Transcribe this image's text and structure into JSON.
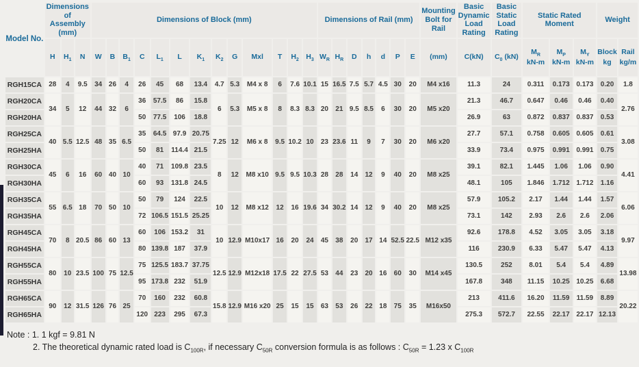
{
  "page": {
    "accent_blue": "#1a6b9a",
    "stripe_dark": "#e2e1dd",
    "stripe_light": "#f5f4f0",
    "page_bg": "#f0efec",
    "edge_bar_color": "#1c1c30"
  },
  "table": {
    "model_col_width": 56,
    "header_groups": [
      {
        "label": "Model No.",
        "name": "model-no-header",
        "rowspan": 2
      },
      {
        "label": "Dimensions of Assembly (mm)",
        "name": "group-dimensions-assembly",
        "colspan": 3
      },
      {
        "label": "Dimensions of Block (mm)",
        "name": "group-dimensions-block",
        "colspan": 13
      },
      {
        "label": "Dimensions of Rail (mm)",
        "name": "group-dimensions-rail",
        "colspan": 7
      },
      {
        "label": "Mounting Bolt for Rail",
        "name": "group-mounting-bolt",
        "colspan": 1
      },
      {
        "label": "Basic Dynamic Load Rating",
        "name": "group-dynamic-load",
        "colspan": 1
      },
      {
        "label": "Basic Static Load Rating",
        "name": "group-static-load",
        "colspan": 1
      },
      {
        "label": "Static Rated Moment",
        "name": "group-static-moment",
        "colspan": 3
      },
      {
        "label": "Weight",
        "name": "group-weight",
        "colspan": 2
      }
    ],
    "columns": [
      {
        "key": "H",
        "t": "H",
        "w": 22
      },
      {
        "key": "H1",
        "t": "H",
        "s": "1",
        "w": 18
      },
      {
        "key": "N",
        "t": "N",
        "w": 22
      },
      {
        "key": "W",
        "t": "W",
        "w": 20
      },
      {
        "key": "B",
        "t": "B",
        "w": 18
      },
      {
        "key": "B1",
        "t": "B",
        "s": "1",
        "w": 19
      },
      {
        "key": "C",
        "t": "C",
        "w": 22
      },
      {
        "key": "L1",
        "t": "L",
        "s": "1",
        "w": 26
      },
      {
        "key": "L",
        "t": "L",
        "w": 28
      },
      {
        "key": "K1",
        "t": "K",
        "s": "1",
        "w": 30
      },
      {
        "key": "K2",
        "t": "K",
        "s": "2",
        "w": 21
      },
      {
        "key": "G",
        "t": "G",
        "w": 20
      },
      {
        "key": "Mxl",
        "t": "Mxl",
        "w": 42
      },
      {
        "key": "T",
        "t": "T",
        "w": 20
      },
      {
        "key": "H2",
        "t": "H",
        "s": "2",
        "w": 20
      },
      {
        "key": "H3",
        "t": "H",
        "s": "3",
        "w": 20
      },
      {
        "key": "WR",
        "t": "W",
        "s": "R",
        "w": 19
      },
      {
        "key": "HR",
        "t": "H",
        "s": "R",
        "w": 20
      },
      {
        "key": "D",
        "t": "D",
        "w": 20
      },
      {
        "key": "h",
        "t": "h",
        "w": 19
      },
      {
        "key": "d",
        "t": "d",
        "w": 19
      },
      {
        "key": "P",
        "t": "P",
        "w": 20
      },
      {
        "key": "E",
        "t": "E",
        "w": 20
      },
      {
        "key": "bolt",
        "t": "(mm)",
        "w": 48
      },
      {
        "key": "CkN",
        "t": "C(kN)",
        "w": 44
      },
      {
        "key": "C0",
        "t": "C",
        "s": "0",
        "post": " (kN)",
        "w": 44
      },
      {
        "key": "MR",
        "t": "M",
        "s": "R",
        "u": "kN-m",
        "w": 38
      },
      {
        "key": "MP",
        "t": "M",
        "s": "P",
        "u": "kN-m",
        "w": 33
      },
      {
        "key": "MY",
        "t": "M",
        "s": "Y",
        "u": "kN-m",
        "w": 33
      },
      {
        "key": "block",
        "t": "Block",
        "u": "kg",
        "w": 27
      },
      {
        "key": "rail",
        "t": "Rail",
        "u": "kg/m",
        "w": 28
      }
    ],
    "groups": [
      {
        "models": [
          "RGH15CA"
        ],
        "merged": {
          "H": "28",
          "H1": "4",
          "N": "9.5",
          "W": "34",
          "B": "26",
          "B1": "4",
          "K2": "4.7",
          "G": "5.3",
          "Mxl": "M4 x 8",
          "T": "6",
          "H2": "7.6",
          "H3": "10.1",
          "WR": "15",
          "HR": "16.5",
          "D": "7.5",
          "h": "5.7",
          "d": "4.5",
          "P": "30",
          "E": "20",
          "bolt": "M4 x16",
          "rail": "1.8"
        },
        "rows": [
          {
            "C": "26",
            "L1": "45",
            "L": "68",
            "K1": "13.4",
            "CkN": "11.3",
            "C0": "24",
            "MR": "0.311",
            "MP": "0.173",
            "MY": "0.173",
            "block": "0.20"
          }
        ]
      },
      {
        "models": [
          "RGH20CA",
          "RGH20HA"
        ],
        "merged": {
          "H": "34",
          "H1": "5",
          "N": "12",
          "W": "44",
          "B": "32",
          "B1": "6",
          "K2": "6",
          "G": "5.3",
          "Mxl": "M5 x 8",
          "T": "8",
          "H2": "8.3",
          "H3": "8.3",
          "WR": "20",
          "HR": "21",
          "D": "9.5",
          "h": "8.5",
          "d": "6",
          "P": "30",
          "E": "20",
          "bolt": "M5 x20",
          "rail": "2.76"
        },
        "rows": [
          {
            "C": "36",
            "L1": "57.5",
            "L": "86",
            "K1": "15.8",
            "CkN": "21.3",
            "C0": "46.7",
            "MR": "0.647",
            "MP": "0.46",
            "MY": "0.46",
            "block": "0.40"
          },
          {
            "C": "50",
            "L1": "77.5",
            "L": "106",
            "K1": "18.8",
            "CkN": "26.9",
            "C0": "63",
            "MR": "0.872",
            "MP": "0.837",
            "MY": "0.837",
            "block": "0.53"
          }
        ]
      },
      {
        "models": [
          "RGH25CA",
          "RGH25HA"
        ],
        "merged": {
          "H": "40",
          "H1": "5.5",
          "N": "12.5",
          "W": "48",
          "B": "35",
          "B1": "6.5",
          "K2": "7.25",
          "G": "12",
          "Mxl": "M6 x 8",
          "T": "9.5",
          "H2": "10.2",
          "H3": "10",
          "WR": "23",
          "HR": "23.6",
          "D": "11",
          "h": "9",
          "d": "7",
          "P": "30",
          "E": "20",
          "bolt": "M6 x20",
          "rail": "3.08"
        },
        "rows": [
          {
            "C": "35",
            "L1": "64.5",
            "L": "97.9",
            "K1": "20.75",
            "CkN": "27.7",
            "C0": "57.1",
            "MR": "0.758",
            "MP": "0.605",
            "MY": "0.605",
            "block": "0.61"
          },
          {
            "C": "50",
            "L1": "81",
            "L": "114.4",
            "K1": "21.5",
            "CkN": "33.9",
            "C0": "73.4",
            "MR": "0.975",
            "MP": "0.991",
            "MY": "0.991",
            "block": "0.75"
          }
        ]
      },
      {
        "models": [
          "RGH30CA",
          "RGH30HA"
        ],
        "merged": {
          "H": "45",
          "H1": "6",
          "N": "16",
          "W": "60",
          "B": "40",
          "B1": "10",
          "K2": "8",
          "G": "12",
          "Mxl": "M8 x10",
          "T": "9.5",
          "H2": "9.5",
          "H3": "10.3",
          "WR": "28",
          "HR": "28",
          "D": "14",
          "h": "12",
          "d": "9",
          "P": "40",
          "E": "20",
          "bolt": "M8 x25",
          "rail": "4.41"
        },
        "rows": [
          {
            "C": "40",
            "L1": "71",
            "L": "109.8",
            "K1": "23.5",
            "CkN": "39.1",
            "C0": "82.1",
            "MR": "1.445",
            "MP": "1.06",
            "MY": "1.06",
            "block": "0.90"
          },
          {
            "C": "60",
            "L1": "93",
            "L": "131.8",
            "K1": "24.5",
            "CkN": "48.1",
            "C0": "105",
            "MR": "1.846",
            "MP": "1.712",
            "MY": "1.712",
            "block": "1.16"
          }
        ]
      },
      {
        "models": [
          "RGH35CA",
          "RGH35HA"
        ],
        "merged": {
          "H": "55",
          "H1": "6.5",
          "N": "18",
          "W": "70",
          "B": "50",
          "B1": "10",
          "K2": "10",
          "G": "12",
          "Mxl": "M8 x12",
          "T": "12",
          "H2": "16",
          "H3": "19.6",
          "WR": "34",
          "HR": "30.2",
          "D": "14",
          "h": "12",
          "d": "9",
          "P": "40",
          "E": "20",
          "bolt": "M8 x25",
          "rail": "6.06"
        },
        "rows": [
          {
            "C": "50",
            "L1": "79",
            "L": "124",
            "K1": "22.5",
            "CkN": "57.9",
            "C0": "105.2",
            "MR": "2.17",
            "MP": "1.44",
            "MY": "1.44",
            "block": "1.57"
          },
          {
            "C": "72",
            "L1": "106.5",
            "L": "151.5",
            "K1": "25.25",
            "CkN": "73.1",
            "C0": "142",
            "MR": "2.93",
            "MP": "2.6",
            "MY": "2.6",
            "block": "2.06"
          }
        ]
      },
      {
        "models": [
          "RGH45CA",
          "RGH45HA"
        ],
        "merged": {
          "H": "70",
          "H1": "8",
          "N": "20.5",
          "W": "86",
          "B": "60",
          "B1": "13",
          "K2": "10",
          "G": "12.9",
          "Mxl": "M10x17",
          "T": "16",
          "H2": "20",
          "H3": "24",
          "WR": "45",
          "HR": "38",
          "D": "20",
          "h": "17",
          "d": "14",
          "P": "52.5",
          "E": "22.5",
          "bolt": "M12 x35",
          "rail": "9.97"
        },
        "rows": [
          {
            "C": "60",
            "L1": "106",
            "L": "153.2",
            "K1": "31",
            "CkN": "92.6",
            "C0": "178.8",
            "MR": "4.52",
            "MP": "3.05",
            "MY": "3.05",
            "block": "3.18"
          },
          {
            "C": "80",
            "L1": "139.8",
            "L": "187",
            "K1": "37.9",
            "CkN": "116",
            "C0": "230.9",
            "MR": "6.33",
            "MP": "5.47",
            "MY": "5.47",
            "block": "4.13"
          }
        ]
      },
      {
        "models": [
          "RGH55CA",
          "RGH55HA"
        ],
        "merged": {
          "H": "80",
          "H1": "10",
          "N": "23.5",
          "W": "100",
          "B": "75",
          "B1": "12.5",
          "K2": "12.5",
          "G": "12.9",
          "Mxl": "M12x18",
          "T": "17.5",
          "H2": "22",
          "H3": "27.5",
          "WR": "53",
          "HR": "44",
          "D": "23",
          "h": "20",
          "d": "16",
          "P": "60",
          "E": "30",
          "bolt": "M14 x45",
          "rail": "13.98"
        },
        "rows": [
          {
            "C": "75",
            "L1": "125.5",
            "L": "183.7",
            "K1": "37.75",
            "CkN": "130.5",
            "C0": "252",
            "MR": "8.01",
            "MP": "5.4",
            "MY": "5.4",
            "block": "4.89"
          },
          {
            "C": "95",
            "L1": "173.8",
            "L": "232",
            "K1": "51.9",
            "CkN": "167.8",
            "C0": "348",
            "MR": "11.15",
            "MP": "10.25",
            "MY": "10.25",
            "block": "6.68"
          }
        ]
      },
      {
        "models": [
          "RGH65CA",
          "RGH65HA"
        ],
        "merged": {
          "H": "90",
          "H1": "12",
          "N": "31.5",
          "W": "126",
          "B": "76",
          "B1": "25",
          "K2": "15.8",
          "G": "12.9",
          "Mxl": "M16 x20",
          "T": "25",
          "H2": "15",
          "H3": "15",
          "WR": "63",
          "HR": "53",
          "D": "26",
          "h": "22",
          "d": "18",
          "P": "75",
          "E": "35",
          "bolt": "M16x50",
          "rail": "20.22"
        },
        "rows": [
          {
            "C": "70",
            "L1": "160",
            "L": "232",
            "K1": "60.8",
            "CkN": "213",
            "C0": "411.6",
            "MR": "16.20",
            "MP": "11.59",
            "MY": "11.59",
            "block": "8.89"
          },
          {
            "C": "120",
            "L1": "223",
            "L": "295",
            "K1": "67.3",
            "CkN": "275.3",
            "C0": "572.7",
            "MR": "22.55",
            "MP": "22.17",
            "MY": "22.17",
            "block": "12.13"
          }
        ]
      }
    ]
  },
  "notes": {
    "line1": "Note : 1. 1 kgf = 9.81 N",
    "line2_parts": [
      {
        "t": "2. The theoretical dynamic rated load is C"
      },
      {
        "s": "100R"
      },
      {
        "t": ", if necessary C"
      },
      {
        "s": "50R"
      },
      {
        "t": " conversion formula is as follows : C"
      },
      {
        "s": "50R"
      },
      {
        "t": " = 1.23 x C"
      },
      {
        "s": "100R"
      }
    ]
  }
}
